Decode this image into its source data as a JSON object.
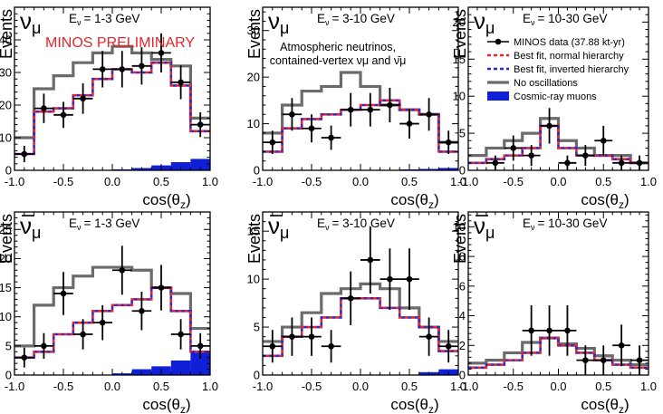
{
  "figure": {
    "watermark": "MINOS PRELIMINARY",
    "annotation_line1": "Atmospheric neutrinos,",
    "annotation_line2": "contained-vertex νμ and ν̄μ",
    "colors": {
      "data": "#000000",
      "normal": "#e8242c",
      "inverted": "#1f2bd6",
      "noosc": "#6b6b6b",
      "cosmic": "#1020d8",
      "watermark": "#e8242c"
    }
  },
  "legend": {
    "entries": [
      {
        "label": "MINOS data (37.88 kt-yr)",
        "style": "data"
      },
      {
        "label": "Best fit, normal hierarchy",
        "style": "normal"
      },
      {
        "label": "Best fit, inverted hierarchy",
        "style": "inverted"
      },
      {
        "label": "No oscillations",
        "style": "noosc"
      },
      {
        "label": "Cosmic-ray muons",
        "style": "cosmic"
      }
    ]
  },
  "chart_data": [
    {
      "type": "line",
      "particle": "ν",
      "particle_sub": "μ",
      "anti": false,
      "energy_label": "E",
      "energy_sub": "ν",
      "energy_range": "= 1-3 GeV",
      "xlabel": "cos(θz)",
      "ylabel": "Events",
      "xlim": [
        -1,
        1
      ],
      "ylim": [
        0,
        50
      ],
      "xticks": [
        "-1.0",
        "-0.5",
        "0.0",
        "0.5",
        "1.0"
      ],
      "yticks": [
        0,
        10,
        20,
        30,
        40
      ],
      "bin_edges": [
        -1.0,
        -0.8,
        -0.6,
        -0.4,
        -0.2,
        0.0,
        0.2,
        0.4,
        0.6,
        0.8,
        1.0
      ],
      "no_oscillations": [
        10,
        25,
        29,
        33,
        36,
        38,
        36,
        34,
        32,
        16
      ],
      "normal_hierarchy": [
        5,
        18,
        19,
        23,
        28,
        31,
        30,
        33,
        26,
        12
      ],
      "inverted_hierarchy": [
        5,
        18,
        19,
        23,
        28,
        31,
        30,
        33,
        26,
        12
      ],
      "cosmic_muons": [
        0,
        0,
        0,
        0,
        0,
        0.3,
        0.7,
        1.5,
        2.5,
        3.5
      ],
      "data": [
        {
          "x": -0.9,
          "y": 5,
          "err": 2.5
        },
        {
          "x": -0.7,
          "y": 19,
          "err": 4.5
        },
        {
          "x": -0.5,
          "y": 17,
          "err": 4.0
        },
        {
          "x": -0.3,
          "y": 22,
          "err": 4.7
        },
        {
          "x": -0.1,
          "y": 31,
          "err": 5.6
        },
        {
          "x": 0.1,
          "y": 31,
          "err": 5.6
        },
        {
          "x": 0.3,
          "y": 32,
          "err": 5.7
        },
        {
          "x": 0.5,
          "y": 36,
          "err": 6.0
        },
        {
          "x": 0.7,
          "y": 27,
          "err": 5.2
        },
        {
          "x": 0.9,
          "y": 14,
          "err": 3.8
        }
      ]
    },
    {
      "type": "line",
      "particle": "ν",
      "particle_sub": "μ",
      "anti": false,
      "energy_label": "E",
      "energy_sub": "ν",
      "energy_range": "= 3-10 GeV",
      "xlabel": "cos(θz)",
      "ylabel": "Events",
      "xlim": [
        -1,
        1
      ],
      "ylim": [
        0,
        35
      ],
      "xticks": [
        "-1.0",
        "-0.5",
        "0.0",
        "0.5",
        "1.0"
      ],
      "yticks": [
        0,
        10,
        20,
        30
      ],
      "bin_edges": [
        -1.0,
        -0.8,
        -0.6,
        -0.4,
        -0.2,
        0.0,
        0.2,
        0.4,
        0.6,
        0.8,
        1.0
      ],
      "no_oscillations": [
        8,
        14,
        17,
        18,
        21,
        18,
        14,
        13,
        12,
        6
      ],
      "normal_hierarchy": [
        4,
        9,
        11,
        12,
        13,
        14,
        15,
        13,
        12,
        4
      ],
      "inverted_hierarchy": [
        4,
        9,
        11,
        12,
        13,
        14,
        15,
        13,
        12,
        4
      ],
      "cosmic_muons": [
        0,
        0,
        0,
        0,
        0,
        0,
        0,
        0.2,
        0.3,
        0.5
      ],
      "data": [
        {
          "x": -0.9,
          "y": 6,
          "err": 2.5
        },
        {
          "x": -0.7,
          "y": 12,
          "err": 3.5
        },
        {
          "x": -0.5,
          "y": 9,
          "err": 3.0
        },
        {
          "x": -0.3,
          "y": 7,
          "err": 2.6
        },
        {
          "x": -0.1,
          "y": 13,
          "err": 3.6
        },
        {
          "x": 0.1,
          "y": 13,
          "err": 3.6
        },
        {
          "x": 0.3,
          "y": 14,
          "err": 3.7
        },
        {
          "x": 0.5,
          "y": 10,
          "err": 3.2
        },
        {
          "x": 0.7,
          "y": 12,
          "err": 3.5
        },
        {
          "x": 0.9,
          "y": 6,
          "err": 2.5
        }
      ]
    },
    {
      "type": "line",
      "particle": "ν",
      "particle_sub": "μ",
      "anti": false,
      "energy_label": "E",
      "energy_sub": "ν",
      "energy_range": "= 10-30 GeV",
      "xlabel": "cos(θz)",
      "ylabel": "Events",
      "xlim": [
        -1,
        1
      ],
      "ylim": [
        0,
        22
      ],
      "xticks": [
        "-1.0",
        "-0.5",
        "0.0",
        "0.5",
        "1.0"
      ],
      "yticks": [
        0,
        5,
        10,
        15,
        20
      ],
      "bin_edges": [
        -1.0,
        -0.8,
        -0.6,
        -0.4,
        -0.2,
        0.0,
        0.2,
        0.4,
        0.6,
        0.8,
        1.0
      ],
      "no_oscillations": [
        2,
        3,
        4,
        5,
        7,
        4,
        3,
        2,
        2,
        1
      ],
      "normal_hierarchy": [
        1,
        1.5,
        2,
        3,
        6,
        3,
        2,
        2,
        1.5,
        1
      ],
      "inverted_hierarchy": [
        1,
        1.5,
        2,
        3,
        6,
        3,
        2,
        2,
        1.5,
        1
      ],
      "cosmic_muons": [
        0,
        0,
        0,
        0,
        0,
        0,
        0,
        0,
        0,
        0
      ],
      "data": [
        {
          "x": -0.7,
          "y": 1,
          "err": 1
        },
        {
          "x": -0.5,
          "y": 3,
          "err": 1.7
        },
        {
          "x": -0.3,
          "y": 2,
          "err": 1.4
        },
        {
          "x": -0.1,
          "y": 6,
          "err": 2.4
        },
        {
          "x": 0.1,
          "y": 1,
          "err": 1
        },
        {
          "x": 0.3,
          "y": 2,
          "err": 1.4
        },
        {
          "x": 0.5,
          "y": 4,
          "err": 2
        },
        {
          "x": 0.7,
          "y": 1,
          "err": 1
        },
        {
          "x": 0.9,
          "y": 1,
          "err": 1
        }
      ]
    },
    {
      "type": "line",
      "particle": "ν",
      "particle_sub": "μ",
      "anti": true,
      "energy_label": "E",
      "energy_sub": "ν",
      "energy_range": "= 1-3 GeV",
      "xlabel": "cos(θz)",
      "ylabel": "Events",
      "xlim": [
        -1,
        1
      ],
      "ylim": [
        0,
        28
      ],
      "xticks": [
        "-1.0",
        "-0.5",
        "0.0",
        "0.5",
        "1.0"
      ],
      "yticks": [
        0,
        5,
        10,
        15,
        20,
        25
      ],
      "bin_edges": [
        -1.0,
        -0.8,
        -0.6,
        -0.4,
        -0.2,
        0.0,
        0.2,
        0.4,
        0.6,
        0.8,
        1.0
      ],
      "no_oscillations": [
        5,
        12,
        15,
        17,
        18.5,
        18.5,
        18,
        15,
        14,
        8
      ],
      "normal_hierarchy": [
        3,
        4,
        7,
        9,
        11,
        12,
        13,
        15,
        11,
        4
      ],
      "inverted_hierarchy": [
        3,
        4,
        7,
        9,
        11,
        12,
        13,
        15,
        11,
        4
      ],
      "cosmic_muons": [
        0,
        0,
        0,
        0,
        0,
        0.3,
        1,
        1.5,
        2.5,
        4
      ],
      "data": [
        {
          "x": -0.9,
          "y": 3,
          "err": 1.7
        },
        {
          "x": -0.7,
          "y": 5,
          "err": 2.2
        },
        {
          "x": -0.5,
          "y": 14,
          "err": 3.7
        },
        {
          "x": -0.3,
          "y": 7,
          "err": 2.6
        },
        {
          "x": -0.1,
          "y": 9,
          "err": 3.0
        },
        {
          "x": 0.1,
          "y": 18,
          "err": 4.2
        },
        {
          "x": 0.3,
          "y": 11,
          "err": 3.3
        },
        {
          "x": 0.5,
          "y": 15,
          "err": 3.9
        },
        {
          "x": 0.7,
          "y": 7,
          "err": 2.6
        },
        {
          "x": 0.9,
          "y": 5,
          "err": 2.2
        }
      ]
    },
    {
      "type": "line",
      "particle": "ν",
      "particle_sub": "μ",
      "anti": true,
      "energy_label": "E",
      "energy_sub": "ν",
      "energy_range": "= 3-10 GeV",
      "xlabel": "cos(θz)",
      "ylabel": "Events",
      "xlim": [
        -1,
        1
      ],
      "ylim": [
        0,
        17
      ],
      "xticks": [
        "-1.0",
        "-0.5",
        "0.0",
        "0.5",
        "1.0"
      ],
      "yticks": [
        0,
        5,
        10,
        15
      ],
      "bin_edges": [
        -1.0,
        -0.8,
        -0.6,
        -0.4,
        -0.2,
        0.0,
        0.2,
        0.4,
        0.6,
        0.8,
        1.0
      ],
      "no_oscillations": [
        3.5,
        5,
        6.5,
        8.5,
        9,
        9.5,
        9,
        7,
        5,
        3.5
      ],
      "normal_hierarchy": [
        2,
        4,
        5,
        6,
        8,
        8,
        7,
        6,
        5,
        2.5
      ],
      "inverted_hierarchy": [
        2,
        4,
        5,
        6,
        8,
        8,
        7,
        6,
        5,
        2.5
      ],
      "cosmic_muons": [
        0,
        0,
        0,
        0,
        0,
        0,
        0,
        0,
        0.3,
        0.6
      ],
      "data": [
        {
          "x": -0.9,
          "y": 3,
          "err": 1.7
        },
        {
          "x": -0.7,
          "y": 4,
          "err": 2.0
        },
        {
          "x": -0.5,
          "y": 4,
          "err": 2.0
        },
        {
          "x": -0.3,
          "y": 3,
          "err": 1.7
        },
        {
          "x": -0.1,
          "y": 8,
          "err": 2.8
        },
        {
          "x": 0.1,
          "y": 12,
          "err": 3.5
        },
        {
          "x": 0.3,
          "y": 10,
          "err": 3.2
        },
        {
          "x": 0.5,
          "y": 10,
          "err": 3.2
        },
        {
          "x": 0.7,
          "y": 4,
          "err": 2.0
        },
        {
          "x": 0.9,
          "y": 3,
          "err": 1.7
        }
      ]
    },
    {
      "type": "line",
      "particle": "ν",
      "particle_sub": "μ",
      "anti": true,
      "energy_label": "E",
      "energy_sub": "ν",
      "energy_range": "= 10-30 GeV",
      "xlabel": "cos(θz)",
      "ylabel": "Events",
      "xlim": [
        -1,
        1
      ],
      "ylim": [
        0,
        11
      ],
      "xticks": [
        "-1.0",
        "-0.5",
        "0.0",
        "0.5",
        "1.0"
      ],
      "yticks": [
        0,
        2,
        4,
        6,
        8,
        10
      ],
      "bin_edges": [
        -1.0,
        -0.8,
        -0.6,
        -0.4,
        -0.2,
        0.0,
        0.2,
        0.4,
        0.6,
        0.8,
        1.0
      ],
      "no_oscillations": [
        0.8,
        1,
        1.5,
        2.2,
        2.5,
        2.1,
        1.8,
        1.3,
        1,
        0.7
      ],
      "normal_hierarchy": [
        0.5,
        0.7,
        1,
        1.5,
        2.5,
        2,
        1.5,
        1,
        0.7,
        0.5
      ],
      "inverted_hierarchy": [
        0.5,
        0.7,
        1,
        1.5,
        2.5,
        2,
        1.5,
        1,
        0.7,
        0.5
      ],
      "cosmic_muons": [
        0,
        0,
        0,
        0,
        0,
        0,
        0,
        0,
        0,
        0
      ],
      "data": [
        {
          "x": -0.3,
          "y": 3,
          "err": 1.7
        },
        {
          "x": -0.1,
          "y": 3,
          "err": 1.7
        },
        {
          "x": 0.1,
          "y": 3,
          "err": 1.7
        },
        {
          "x": 0.3,
          "y": 1,
          "err": 1.0
        },
        {
          "x": 0.5,
          "y": 1,
          "err": 1.0
        },
        {
          "x": 0.7,
          "y": 2,
          "err": 1.4
        },
        {
          "x": 0.9,
          "y": 1,
          "err": 1.0
        }
      ]
    }
  ]
}
